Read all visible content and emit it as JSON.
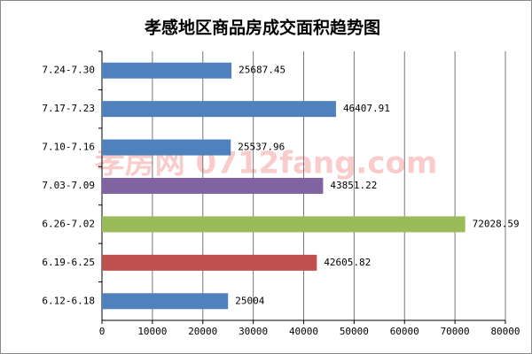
{
  "chart_data": {
    "type": "hbar",
    "title": "孝感地区商品房成交面积趋势图",
    "watermark": "孝房网 0712fang.com",
    "categories": [
      "7.24-7.30",
      "7.17-7.23",
      "7.10-7.16",
      "7.03-7.09",
      "6.26-7.02",
      "6.19-6.25",
      "6.12-6.18"
    ],
    "values": [
      25687.45,
      46407.91,
      25537.96,
      43851.22,
      72028.59,
      42605.82,
      25004
    ],
    "colors": [
      "#4f81bd",
      "#4f81bd",
      "#4f81bd",
      "#8064a2",
      "#9bbb59",
      "#c0504d",
      "#4f81bd"
    ],
    "xlim": [
      0,
      80000
    ],
    "xticks": [
      0,
      10000,
      20000,
      30000,
      40000,
      50000,
      60000,
      70000,
      80000
    ],
    "grid": true
  }
}
